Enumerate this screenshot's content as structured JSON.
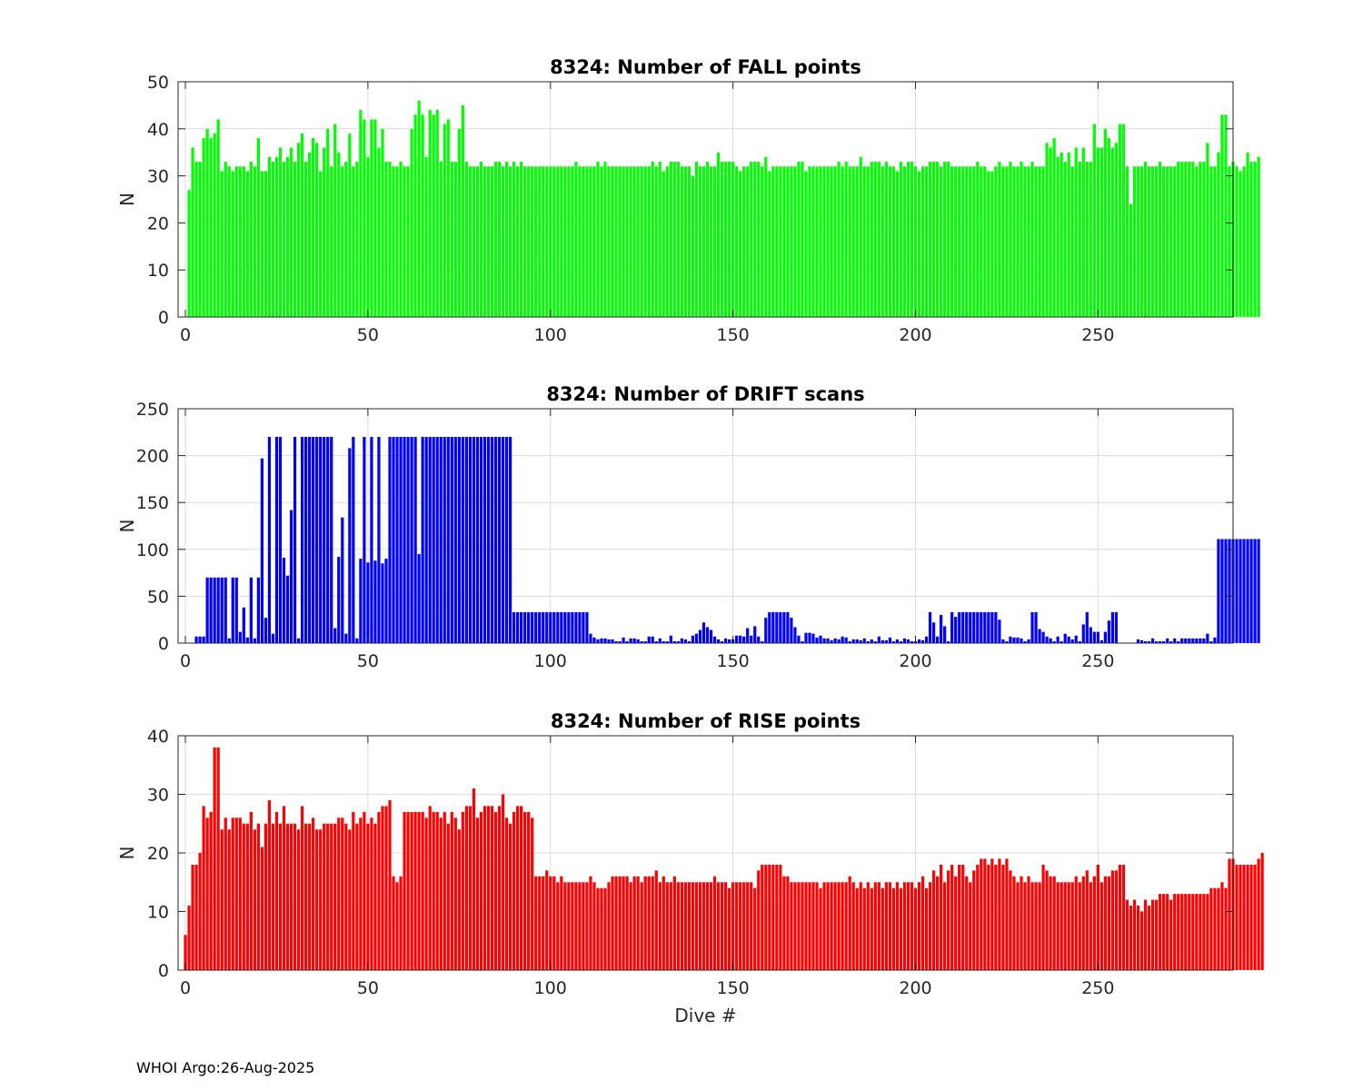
{
  "footer": "WHOI Argo:26-Aug-2025",
  "chart_data": [
    {
      "type": "bar",
      "title": "8324: Number of FALL points",
      "xlabel": "",
      "ylabel": "N",
      "xlim": [
        -2,
        287
      ],
      "ylim": [
        0,
        50
      ],
      "xticks": [
        0,
        50,
        100,
        150,
        200,
        250
      ],
      "yticks": [
        0,
        10,
        20,
        30,
        40,
        50
      ],
      "grid": true,
      "color": "#00ff00",
      "x_start": 1,
      "values": [
        27,
        36,
        33,
        33,
        38,
        40,
        38,
        39,
        42,
        31,
        33,
        32,
        31,
        32,
        32,
        32,
        31,
        33,
        32,
        38,
        31,
        31,
        34,
        33,
        34,
        36,
        33,
        34,
        36,
        33,
        37,
        39,
        33,
        35,
        38,
        37,
        31,
        36,
        40,
        32,
        41,
        35,
        32,
        33,
        39,
        32,
        33,
        44,
        42,
        34,
        42,
        42,
        36,
        40,
        33,
        33,
        32,
        32,
        33,
        32,
        32,
        40,
        43,
        46,
        43,
        34,
        44,
        43,
        44,
        33,
        41,
        42,
        33,
        33,
        40,
        45,
        33,
        32,
        32,
        32,
        33,
        32,
        32,
        32,
        33,
        33,
        32,
        33,
        32,
        33,
        32,
        33,
        32,
        32,
        32,
        32,
        32,
        32,
        32,
        32,
        32,
        32,
        32,
        32,
        32,
        32,
        33,
        32,
        32,
        32,
        32,
        32,
        33,
        32,
        33,
        32,
        32,
        32,
        32,
        32,
        32,
        32,
        32,
        32,
        32,
        32,
        32,
        33,
        32,
        33,
        31,
        32,
        33,
        33,
        33,
        32,
        32,
        32,
        30,
        33,
        32,
        32,
        33,
        32,
        32,
        35,
        33,
        33,
        33,
        33,
        32,
        31,
        32,
        32,
        33,
        33,
        33,
        32,
        34,
        31,
        32,
        32,
        32,
        32,
        32,
        32,
        32,
        33,
        33,
        31,
        32,
        32,
        32,
        32,
        32,
        32,
        32,
        32,
        33,
        32,
        33,
        32,
        32,
        32,
        34,
        32,
        32,
        33,
        33,
        33,
        32,
        33,
        32,
        32,
        31,
        33,
        32,
        33,
        33,
        32,
        31,
        32,
        32,
        33,
        33,
        33,
        32,
        33,
        33,
        32,
        32,
        32,
        32,
        32,
        32,
        32,
        33,
        32,
        32,
        31,
        31,
        32,
        33,
        32,
        32,
        33,
        32,
        32,
        33,
        32,
        32,
        33,
        32,
        32,
        32,
        37,
        36,
        38,
        34,
        35,
        33,
        35,
        32,
        36,
        33,
        36,
        33,
        33,
        41,
        36,
        36,
        40,
        38,
        36,
        37,
        41,
        41,
        32,
        24,
        32,
        32,
        32,
        33,
        32,
        32,
        32,
        33,
        32,
        32,
        32,
        32,
        33,
        33,
        33,
        33,
        33,
        32,
        33,
        33,
        37,
        32,
        32,
        35,
        43,
        43,
        32,
        33,
        32,
        31,
        32,
        35,
        33,
        33,
        34
      ]
    },
    {
      "type": "bar",
      "title": "8324: Number of DRIFT scans",
      "xlabel": "",
      "ylabel": "N",
      "xlim": [
        -2,
        287
      ],
      "ylim": [
        0,
        250
      ],
      "xticks": [
        0,
        50,
        100,
        150,
        200,
        250
      ],
      "yticks": [
        0,
        50,
        100,
        150,
        200,
        250
      ],
      "grid": true,
      "color": "#0000ff",
      "x_start": 1,
      "values": [
        0,
        0,
        7,
        7,
        7,
        70,
        70,
        70,
        70,
        70,
        70,
        5,
        70,
        70,
        12,
        38,
        6,
        70,
        5,
        70,
        197,
        27,
        220,
        10,
        220,
        220,
        91,
        72,
        142,
        220,
        5,
        220,
        220,
        220,
        220,
        220,
        220,
        220,
        220,
        220,
        16,
        92,
        134,
        10,
        208,
        220,
        5,
        90,
        220,
        86,
        220,
        88,
        220,
        85,
        90,
        220,
        220,
        220,
        220,
        220,
        220,
        220,
        220,
        95,
        220,
        220,
        220,
        220,
        220,
        220,
        220,
        220,
        220,
        220,
        220,
        220,
        220,
        220,
        220,
        220,
        220,
        220,
        220,
        220,
        220,
        220,
        220,
        220,
        220,
        33,
        33,
        33,
        33,
        33,
        33,
        33,
        33,
        33,
        33,
        33,
        33,
        33,
        33,
        33,
        33,
        33,
        33,
        33,
        33,
        33,
        10,
        6,
        4,
        5,
        5,
        4,
        4,
        2,
        2,
        6,
        2,
        5,
        5,
        4,
        2,
        2,
        7,
        7,
        2,
        5,
        2,
        2,
        8,
        2,
        2,
        5,
        4,
        2,
        8,
        10,
        14,
        22,
        17,
        14,
        7,
        4,
        2,
        5,
        4,
        4,
        8,
        8,
        7,
        16,
        8,
        18,
        7,
        2,
        27,
        33,
        33,
        33,
        33,
        33,
        33,
        27,
        17,
        8,
        2,
        11,
        11,
        10,
        6,
        8,
        5,
        5,
        3,
        5,
        4,
        7,
        6,
        2,
        4,
        4,
        3,
        5,
        2,
        4,
        2,
        7,
        3,
        3,
        6,
        2,
        4,
        2,
        5,
        4,
        2,
        2,
        4,
        3,
        7,
        33,
        22,
        7,
        30,
        18,
        2,
        33,
        28,
        33,
        33,
        33,
        33,
        33,
        33,
        33,
        33,
        33,
        33,
        33,
        25,
        4,
        2,
        7,
        6,
        6,
        5,
        2,
        4,
        33,
        33,
        15,
        12,
        7,
        5,
        2,
        7,
        2,
        10,
        7,
        4,
        8,
        2,
        20,
        33,
        17,
        12,
        12,
        3,
        12,
        24,
        33,
        33,
        0,
        0,
        0,
        0,
        0,
        4,
        3,
        2,
        2,
        5,
        2,
        2,
        2,
        5,
        2,
        5,
        2,
        5,
        5,
        5,
        5,
        5,
        5,
        5,
        10,
        2,
        6,
        111,
        111,
        111,
        111,
        111,
        111,
        111,
        111,
        111,
        111,
        111,
        111
      ]
    },
    {
      "type": "bar",
      "title": "8324: Number of RISE points",
      "xlabel": "Dive #",
      "ylabel": "N",
      "xlim": [
        -2,
        287
      ],
      "ylim": [
        0,
        40
      ],
      "xticks": [
        0,
        50,
        100,
        150,
        200,
        250
      ],
      "yticks": [
        0,
        10,
        20,
        30,
        40
      ],
      "grid": true,
      "color": "#ff0000",
      "x_start": 0,
      "values": [
        6,
        11,
        18,
        18,
        20,
        28,
        26,
        27,
        38,
        38,
        24,
        26,
        24,
        26,
        26,
        26,
        25,
        25,
        27,
        24,
        25,
        21,
        25,
        29,
        25,
        27,
        25,
        28,
        25,
        25,
        25,
        24,
        28,
        25,
        25,
        26,
        24,
        24,
        25,
        25,
        25,
        25,
        26,
        26,
        25,
        24,
        27,
        25,
        26,
        27,
        25,
        26,
        25,
        27,
        28,
        28,
        29,
        16,
        15,
        16,
        27,
        27,
        27,
        27,
        27,
        27,
        26,
        28,
        27,
        27,
        26,
        27,
        25,
        27,
        26,
        24,
        27,
        28,
        28,
        31,
        26,
        27,
        28,
        28,
        28,
        27,
        28,
        30,
        26,
        25,
        27,
        28,
        28,
        27,
        27,
        26,
        16,
        16,
        16,
        17,
        16,
        16,
        15,
        16,
        15,
        15,
        15,
        15,
        15,
        15,
        15,
        16,
        15,
        14,
        14,
        14,
        15,
        16,
        16,
        16,
        16,
        16,
        15,
        16,
        16,
        15,
        16,
        16,
        16,
        17,
        15,
        16,
        15,
        15,
        16,
        15,
        15,
        15,
        15,
        15,
        15,
        15,
        15,
        15,
        15,
        16,
        15,
        15,
        15,
        14,
        15,
        15,
        15,
        15,
        15,
        15,
        14,
        17,
        18,
        18,
        18,
        18,
        18,
        18,
        16,
        16,
        15,
        15,
        15,
        15,
        15,
        15,
        15,
        15,
        14,
        15,
        15,
        15,
        15,
        15,
        15,
        15,
        16,
        15,
        14,
        15,
        14,
        15,
        14,
        15,
        15,
        14,
        15,
        15,
        14,
        15,
        14,
        15,
        15,
        15,
        14,
        15,
        16,
        14,
        15,
        17,
        16,
        18,
        15,
        17,
        18,
        16,
        18,
        18,
        16,
        15,
        17,
        18,
        19,
        19,
        18,
        19,
        18,
        19,
        18,
        19,
        17,
        16,
        15,
        16,
        15,
        16,
        15,
        15,
        15,
        18,
        17,
        16,
        16,
        15,
        15,
        15,
        15,
        15,
        16,
        15,
        16,
        17,
        15,
        16,
        18,
        15,
        16,
        16,
        17,
        17,
        18,
        18,
        12,
        11,
        12,
        11,
        10,
        12,
        11,
        12,
        12,
        13,
        13,
        13,
        12,
        13,
        13,
        13,
        13,
        13,
        13,
        13,
        13,
        13,
        13,
        14,
        14,
        14,
        15,
        14,
        19,
        19,
        18,
        18,
        18,
        18,
        18,
        18,
        19,
        20
      ]
    }
  ]
}
